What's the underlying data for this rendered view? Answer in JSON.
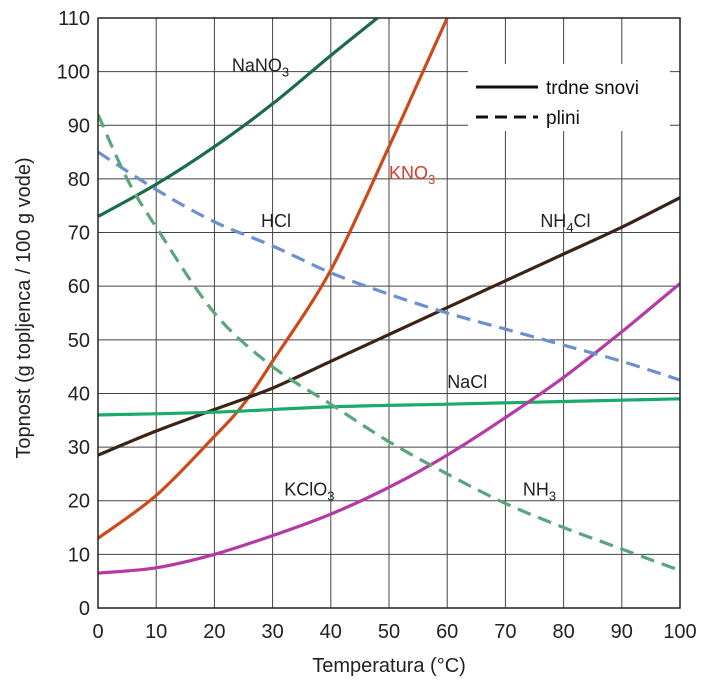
{
  "chart_data": {
    "type": "line",
    "xlabel": "Temperatura (°C)",
    "ylabel": "Topnost (g topljenca / 100 g vode)",
    "xlim": [
      0,
      100
    ],
    "ylim": [
      0,
      110
    ],
    "xticks": [
      "0",
      "10",
      "20",
      "30",
      "40",
      "50",
      "60",
      "70",
      "80",
      "90",
      "100"
    ],
    "yticks": [
      "0",
      "10",
      "20",
      "30",
      "40",
      "50",
      "60",
      "70",
      "80",
      "90",
      "100",
      "110"
    ],
    "grid": true,
    "legend": {
      "position": "top-right",
      "entries": [
        {
          "label": "trdne snovi",
          "style": "solid"
        },
        {
          "label": "plini",
          "style": "dashed"
        }
      ]
    },
    "series": [
      {
        "name": "NaNO3",
        "label_main": "NaNO",
        "label_sub": "3",
        "label_suffix": "",
        "label_at": [
          23,
          100
        ],
        "color": "#1c6b48",
        "dashed": false,
        "x": [
          0,
          10,
          20,
          30,
          40,
          48
        ],
        "y": [
          73,
          79,
          86,
          94,
          103,
          110
        ]
      },
      {
        "name": "KNO3",
        "label_main": "KNO",
        "label_sub": "3",
        "label_suffix": "",
        "label_at": [
          50,
          80
        ],
        "color": "#cc4a1a",
        "dashed": false,
        "x": [
          0,
          10,
          20,
          25,
          30,
          40,
          50,
          55,
          60
        ],
        "y": [
          13,
          21,
          32,
          38,
          46,
          63,
          86,
          98,
          110
        ]
      },
      {
        "name": "NH4Cl",
        "label_main": "NH",
        "label_sub": "4",
        "label_suffix": "Cl",
        "label_at": [
          76,
          71
        ],
        "color": "#3b2416",
        "dashed": false,
        "x": [
          0,
          10,
          20,
          30,
          40,
          50,
          60,
          70,
          80,
          90,
          100
        ],
        "y": [
          28.5,
          33,
          37,
          41,
          46,
          51,
          56,
          61,
          66,
          71,
          76.5
        ]
      },
      {
        "name": "NaCl",
        "label_main": "NaCl",
        "label_sub": "",
        "label_suffix": "",
        "label_at": [
          60,
          41
        ],
        "color": "#1aaa6c",
        "dashed": false,
        "x": [
          0,
          20,
          40,
          60,
          80,
          100
        ],
        "y": [
          36,
          36.5,
          37.5,
          38,
          38.5,
          39
        ]
      },
      {
        "name": "KClO3",
        "label_main": "KClO",
        "label_sub": "3",
        "label_suffix": "",
        "label_at": [
          32,
          21
        ],
        "color": "#b53aa5",
        "dashed": false,
        "x": [
          0,
          10,
          20,
          30,
          40,
          50,
          60,
          70,
          80,
          90,
          100
        ],
        "y": [
          6.5,
          7.5,
          10,
          13.5,
          17.5,
          22.5,
          28.5,
          35.5,
          43,
          51.5,
          60.5
        ]
      },
      {
        "name": "HCl",
        "label_main": "HCl",
        "label_sub": "",
        "label_suffix": "",
        "label_at": [
          28,
          71
        ],
        "color": "#6b8fd0",
        "dashed": true,
        "x": [
          0,
          10,
          20,
          30,
          40,
          50,
          60,
          70,
          80,
          90,
          100
        ],
        "y": [
          85,
          78,
          72,
          67.5,
          62.5,
          58.5,
          55,
          52,
          49,
          46,
          42.5
        ]
      },
      {
        "name": "NH3",
        "label_main": "NH",
        "label_sub": "3",
        "label_suffix": "",
        "label_at": [
          73,
          21
        ],
        "color": "#5aa67c",
        "dashed": true,
        "x": [
          0,
          5,
          10,
          20,
          30,
          40,
          50,
          60,
          70,
          80,
          90,
          100
        ],
        "y": [
          92,
          80,
          71,
          55,
          45,
          38,
          31,
          25,
          19.5,
          15,
          11,
          7
        ]
      }
    ]
  }
}
